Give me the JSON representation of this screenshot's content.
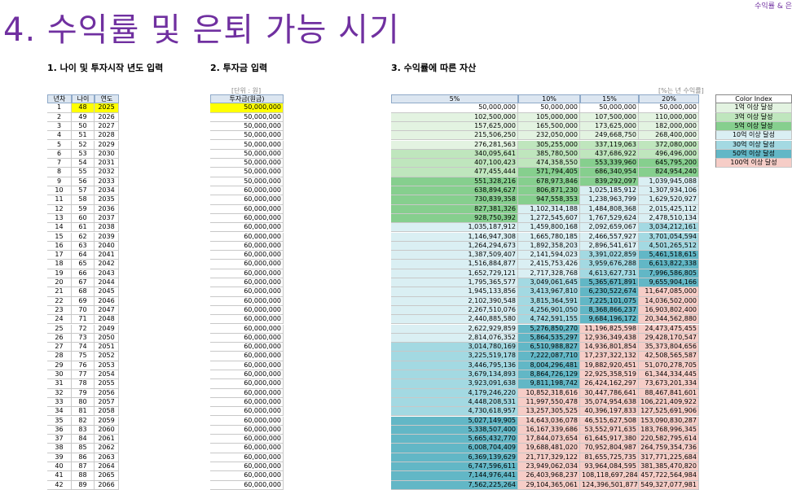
{
  "page": {
    "corner_label": "수익률 & 은",
    "title": "4. 수익률 및 은퇴 가능 시기",
    "section1": "1. 나이 및 투자시작 년도 입력",
    "section2": "2. 투자금 입력",
    "section3": "3. 수익률에 따른 자산",
    "unit_note": "[단위 : 원]",
    "rate_note": "[%는 년 수익률]"
  },
  "table_age": {
    "headers": [
      "년차",
      "나이",
      "연도"
    ],
    "rows": [
      [
        1,
        48,
        2025
      ],
      [
        2,
        49,
        2026
      ],
      [
        3,
        50,
        2027
      ],
      [
        4,
        51,
        2028
      ],
      [
        5,
        52,
        2029
      ],
      [
        6,
        53,
        2030
      ],
      [
        7,
        54,
        2031
      ],
      [
        8,
        55,
        2032
      ],
      [
        9,
        56,
        2033
      ],
      [
        10,
        57,
        2034
      ],
      [
        11,
        58,
        2035
      ],
      [
        12,
        59,
        2036
      ],
      [
        13,
        60,
        2037
      ],
      [
        14,
        61,
        2038
      ],
      [
        15,
        62,
        2039
      ],
      [
        16,
        63,
        2040
      ],
      [
        17,
        64,
        2041
      ],
      [
        18,
        65,
        2042
      ],
      [
        19,
        66,
        2043
      ],
      [
        20,
        67,
        2044
      ],
      [
        21,
        68,
        2045
      ],
      [
        22,
        69,
        2046
      ],
      [
        23,
        70,
        2047
      ],
      [
        24,
        71,
        2048
      ],
      [
        25,
        72,
        2049
      ],
      [
        26,
        73,
        2050
      ],
      [
        27,
        74,
        2051
      ],
      [
        28,
        75,
        2052
      ],
      [
        29,
        76,
        2053
      ],
      [
        30,
        77,
        2054
      ],
      [
        31,
        78,
        2055
      ],
      [
        32,
        79,
        2056
      ],
      [
        33,
        80,
        2057
      ],
      [
        34,
        81,
        2058
      ],
      [
        35,
        82,
        2059
      ],
      [
        36,
        83,
        2060
      ],
      [
        37,
        84,
        2061
      ],
      [
        38,
        85,
        2062
      ],
      [
        39,
        86,
        2063
      ],
      [
        40,
        87,
        2064
      ],
      [
        41,
        88,
        2065
      ],
      [
        42,
        89,
        2066
      ]
    ]
  },
  "table_invest": {
    "header": "투자금(원금)",
    "rows": [
      "50,000,000",
      "50,000,000",
      "50,000,000",
      "50,000,000",
      "50,000,000",
      "50,000,000",
      "50,000,000",
      "50,000,000",
      "50,000,000",
      "60,000,000",
      "60,000,000",
      "60,000,000",
      "60,000,000",
      "60,000,000",
      "60,000,000",
      "60,000,000",
      "60,000,000",
      "60,000,000",
      "60,000,000",
      "60,000,000",
      "60,000,000",
      "60,000,000",
      "60,000,000",
      "60,000,000",
      "60,000,000",
      "60,000,000",
      "60,000,000",
      "60,000,000",
      "60,000,000",
      "60,000,000",
      "60,000,000",
      "60,000,000",
      "60,000,000",
      "60,000,000",
      "60,000,000",
      "60,000,000",
      "60,000,000",
      "60,000,000",
      "60,000,000",
      "60,000,000",
      "60,000,000",
      "60,000,000"
    ]
  },
  "table_assets": {
    "headers": [
      "5%",
      "10%",
      "15%",
      "20%"
    ],
    "rows": [
      [
        "50,000,000",
        "50,000,000",
        "50,000,000",
        "50,000,000"
      ],
      [
        "102,500,000",
        "105,000,000",
        "107,500,000",
        "110,000,000"
      ],
      [
        "157,625,000",
        "165,500,000",
        "173,625,000",
        "182,000,000"
      ],
      [
        "215,506,250",
        "232,050,000",
        "249,668,750",
        "268,400,000"
      ],
      [
        "276,281,563",
        "305,255,000",
        "337,119,063",
        "372,080,000"
      ],
      [
        "340,095,641",
        "385,780,500",
        "437,686,922",
        "496,496,000"
      ],
      [
        "407,100,423",
        "474,358,550",
        "553,339,960",
        "645,795,200"
      ],
      [
        "477,455,444",
        "571,794,405",
        "686,340,954",
        "824,954,240"
      ],
      [
        "551,328,216",
        "678,973,846",
        "839,292,097",
        "1,039,945,088"
      ],
      [
        "638,894,627",
        "806,871,230",
        "1,025,185,912",
        "1,307,934,106"
      ],
      [
        "730,839,358",
        "947,558,353",
        "1,238,963,799",
        "1,629,520,927"
      ],
      [
        "827,381,326",
        "1,102,314,188",
        "1,484,808,368",
        "2,015,425,112"
      ],
      [
        "928,750,392",
        "1,272,545,607",
        "1,767,529,624",
        "2,478,510,134"
      ],
      [
        "1,035,187,912",
        "1,459,800,168",
        "2,092,659,067",
        "3,034,212,161"
      ],
      [
        "1,146,947,308",
        "1,665,780,185",
        "2,466,557,927",
        "3,701,054,594"
      ],
      [
        "1,264,294,673",
        "1,892,358,203",
        "2,896,541,617",
        "4,501,265,512"
      ],
      [
        "1,387,509,407",
        "2,141,594,023",
        "3,391,022,859",
        "5,461,518,615"
      ],
      [
        "1,516,884,877",
        "2,415,753,426",
        "3,959,676,288",
        "6,613,822,338"
      ],
      [
        "1,652,729,121",
        "2,717,328,768",
        "4,613,627,731",
        "7,996,586,805"
      ],
      [
        "1,795,365,577",
        "3,049,061,645",
        "5,365,671,891",
        "9,655,904,166"
      ],
      [
        "1,945,133,856",
        "3,413,967,810",
        "6,230,522,674",
        "11,647,085,000"
      ],
      [
        "2,102,390,548",
        "3,815,364,591",
        "7,225,101,075",
        "14,036,502,000"
      ],
      [
        "2,267,510,076",
        "4,256,901,050",
        "8,368,866,237",
        "16,903,802,400"
      ],
      [
        "2,440,885,580",
        "4,742,591,155",
        "9,684,196,172",
        "20,344,562,880"
      ],
      [
        "2,622,929,859",
        "5,276,850,270",
        "11,196,825,598",
        "24,473,475,455"
      ],
      [
        "2,814,076,352",
        "5,864,535,297",
        "12,936,349,438",
        "29,428,170,547"
      ],
      [
        "3,014,780,169",
        "6,510,988,827",
        "14,936,801,854",
        "35,373,804,656"
      ],
      [
        "3,225,519,178",
        "7,222,087,710",
        "17,237,322,132",
        "42,508,565,587"
      ],
      [
        "3,446,795,136",
        "8,004,296,481",
        "19,882,920,451",
        "51,070,278,705"
      ],
      [
        "3,679,134,893",
        "8,864,726,129",
        "22,925,358,519",
        "61,344,334,445"
      ],
      [
        "3,923,091,638",
        "9,811,198,742",
        "26,424,162,297",
        "73,673,201,334"
      ],
      [
        "4,179,246,220",
        "10,852,318,616",
        "30,447,786,641",
        "88,467,841,601"
      ],
      [
        "4,448,208,531",
        "11,997,550,478",
        "35,074,954,638",
        "106,221,409,922"
      ],
      [
        "4,730,618,957",
        "13,257,305,525",
        "40,396,197,833",
        "127,525,691,906"
      ],
      [
        "5,027,149,905",
        "14,643,036,078",
        "46,515,627,508",
        "153,090,830,287"
      ],
      [
        "5,338,507,400",
        "16,167,339,686",
        "53,552,971,635",
        "183,768,996,345"
      ],
      [
        "5,665,432,770",
        "17,844,073,654",
        "61,645,917,380",
        "220,582,795,614"
      ],
      [
        "6,008,704,409",
        "19,688,481,020",
        "70,952,804,987",
        "264,759,354,736"
      ],
      [
        "6,369,139,629",
        "21,717,329,122",
        "81,655,725,735",
        "317,771,225,684"
      ],
      [
        "6,747,596,611",
        "23,949,062,034",
        "93,964,084,595",
        "381,385,470,820"
      ],
      [
        "7,144,976,441",
        "26,403,968,237",
        "108,118,697,284",
        "457,722,564,984"
      ],
      [
        "7,562,225,264",
        "29,104,365,061",
        "124,396,501,877",
        "549,327,077,981"
      ]
    ]
  },
  "color_index": {
    "header": "Color Index",
    "items": [
      {
        "value": 100000000,
        "label": "1억 이상 달성",
        "color": "#e3f3e1"
      },
      {
        "value": 300000000,
        "label": "3억 이상 달성",
        "color": "#bfe6bd"
      },
      {
        "value": 500000000,
        "label": "5억 이상 달성",
        "color": "#86cf8e"
      },
      {
        "value": 1000000000,
        "label": "10억 이상 달성",
        "color": "#daeff3"
      },
      {
        "value": 3000000000,
        "label": "30억 이상 달성",
        "color": "#a3d9e2"
      },
      {
        "value": 5000000000,
        "label": "50억 이상 달성",
        "color": "#62b7c6"
      },
      {
        "value": 10000000000,
        "label": "100억 이상 달성",
        "color": "#f6cdc7"
      }
    ]
  }
}
